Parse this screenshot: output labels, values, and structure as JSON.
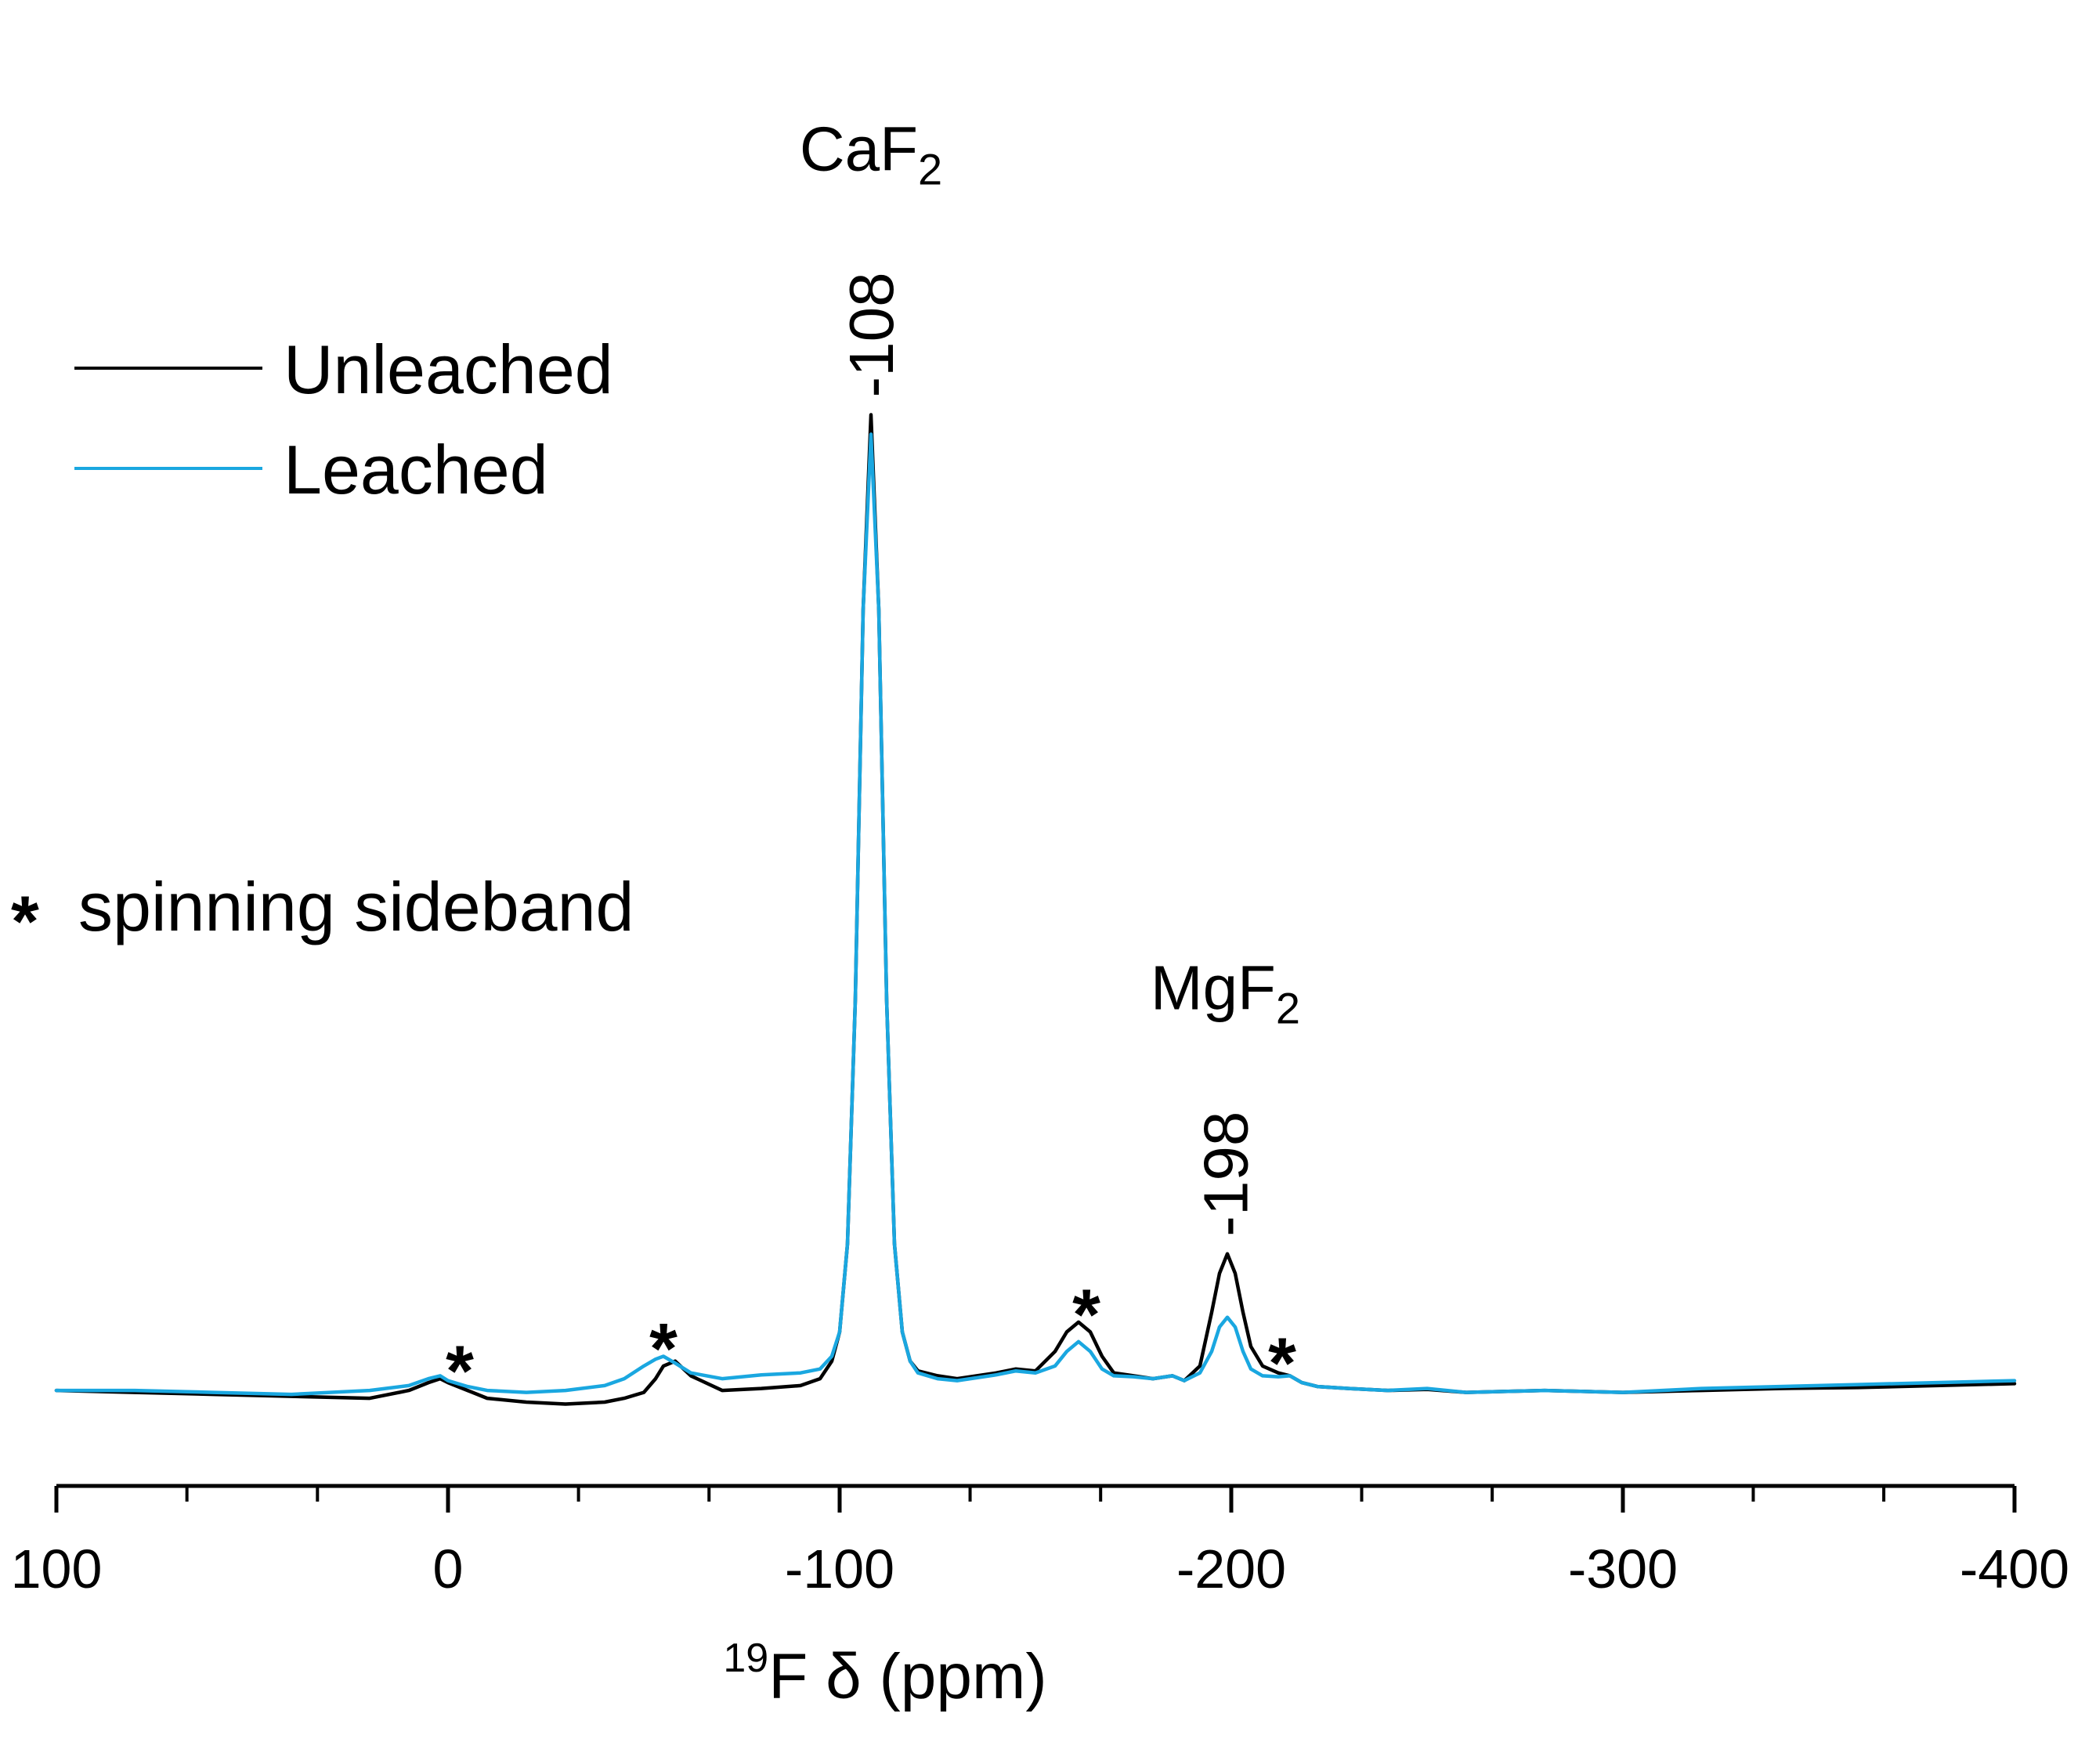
{
  "chart_data": {
    "type": "line",
    "xlabel": {
      "sup": "19",
      "main": "F δ (ppm)"
    },
    "x_range": [
      100,
      -400
    ],
    "x_axis_reversed": true,
    "x_ticks": [
      100,
      0,
      -100,
      -200,
      -300,
      -400
    ],
    "x_tick_labels": [
      "100",
      "0",
      "-100",
      "-200",
      "-300",
      "-400"
    ],
    "x_minor_step": 33.33,
    "y_axis_shown": false,
    "ylim": [
      -0.02,
      1.12
    ],
    "legend": {
      "position": "top-left",
      "entries": [
        {
          "label": "Unleached",
          "color": "#000000"
        },
        {
          "label": "Leached",
          "color": "#1aa7e0"
        }
      ]
    },
    "series": [
      {
        "name": "Unleached",
        "color": "#000000",
        "x": [
          100,
          80,
          60,
          40,
          20,
          10,
          5,
          2,
          0,
          -5,
          -10,
          -20,
          -30,
          -40,
          -45,
          -50,
          -53,
          -55,
          -58,
          -62,
          -70,
          -80,
          -90,
          -95,
          -98,
          -100,
          -102,
          -104,
          -106,
          -108,
          -110,
          -112,
          -114,
          -116,
          -118,
          -120,
          -125,
          -130,
          -140,
          -145,
          -150,
          -155,
          -158,
          -161,
          -164,
          -167,
          -170,
          -175,
          -180,
          -185,
          -188,
          -192,
          -195,
          -197,
          -199,
          -201,
          -203,
          -205,
          -208,
          -212,
          -215,
          -218,
          -222,
          -230,
          -240,
          -250,
          -260,
          -280,
          -300,
          -320,
          -340,
          -360,
          -380,
          -400
        ],
        "y": [
          0.0,
          -0.002,
          -0.004,
          -0.006,
          -0.008,
          0.0,
          0.008,
          0.012,
          0.008,
          0.0,
          -0.008,
          -0.012,
          -0.014,
          -0.012,
          -0.008,
          -0.002,
          0.012,
          0.025,
          0.03,
          0.015,
          0.0,
          0.002,
          0.005,
          0.012,
          0.03,
          0.06,
          0.15,
          0.4,
          0.8,
          1.0,
          0.8,
          0.4,
          0.15,
          0.06,
          0.03,
          0.02,
          0.015,
          0.012,
          0.018,
          0.022,
          0.02,
          0.04,
          0.06,
          0.07,
          0.06,
          0.035,
          0.018,
          0.015,
          0.012,
          0.015,
          0.01,
          0.025,
          0.08,
          0.12,
          0.14,
          0.12,
          0.08,
          0.045,
          0.025,
          0.018,
          0.015,
          0.008,
          0.004,
          0.002,
          0.0,
          0.001,
          -0.002,
          0.0,
          -0.002,
          0.0,
          0.002,
          0.003,
          0.005,
          0.007
        ]
      },
      {
        "name": "Leached",
        "color": "#1aa7e0",
        "x": [
          100,
          80,
          60,
          40,
          20,
          10,
          5,
          2,
          0,
          -5,
          -10,
          -20,
          -30,
          -40,
          -45,
          -50,
          -53,
          -55,
          -58,
          -62,
          -70,
          -80,
          -90,
          -95,
          -98,
          -100,
          -102,
          -104,
          -106,
          -108,
          -110,
          -112,
          -114,
          -116,
          -118,
          -120,
          -125,
          -130,
          -140,
          -145,
          -150,
          -155,
          -158,
          -161,
          -164,
          -167,
          -170,
          -175,
          -180,
          -185,
          -188,
          -192,
          -195,
          -197,
          -199,
          -201,
          -203,
          -205,
          -208,
          -212,
          -215,
          -218,
          -222,
          -230,
          -240,
          -250,
          -260,
          -280,
          -300,
          -320,
          -340,
          -360,
          -380,
          -400
        ],
        "y": [
          0.0,
          0.0,
          -0.002,
          -0.004,
          0.0,
          0.005,
          0.012,
          0.015,
          0.01,
          0.004,
          0.0,
          -0.002,
          0.0,
          0.005,
          0.012,
          0.025,
          0.032,
          0.035,
          0.028,
          0.018,
          0.012,
          0.016,
          0.018,
          0.022,
          0.035,
          0.06,
          0.15,
          0.4,
          0.8,
          0.98,
          0.8,
          0.4,
          0.15,
          0.06,
          0.03,
          0.018,
          0.012,
          0.01,
          0.016,
          0.02,
          0.018,
          0.025,
          0.04,
          0.05,
          0.04,
          0.022,
          0.015,
          0.014,
          0.012,
          0.015,
          0.01,
          0.018,
          0.04,
          0.065,
          0.075,
          0.065,
          0.04,
          0.022,
          0.015,
          0.014,
          0.015,
          0.008,
          0.004,
          0.002,
          0.0,
          0.002,
          -0.002,
          0.0,
          -0.002,
          0.002,
          0.004,
          0.006,
          0.008,
          0.01
        ]
      }
    ],
    "peak_annotations": [
      {
        "formula": "CaF",
        "subscript": "2",
        "shift": "-108",
        "x": -108,
        "y": 1.0
      },
      {
        "formula": "MgF",
        "subscript": "2",
        "shift": "-198",
        "x": -198.5,
        "y": 0.14
      }
    ],
    "sideband_markers": [
      {
        "symbol": "*",
        "x": -3,
        "y": 0.012
      },
      {
        "symbol": "*",
        "x": -55,
        "y": 0.035
      },
      {
        "symbol": "*",
        "x": -163,
        "y": 0.07
      },
      {
        "symbol": "*",
        "x": -213,
        "y": 0.02
      }
    ],
    "note": {
      "symbol": "*",
      "text": "spinning sideband"
    }
  }
}
